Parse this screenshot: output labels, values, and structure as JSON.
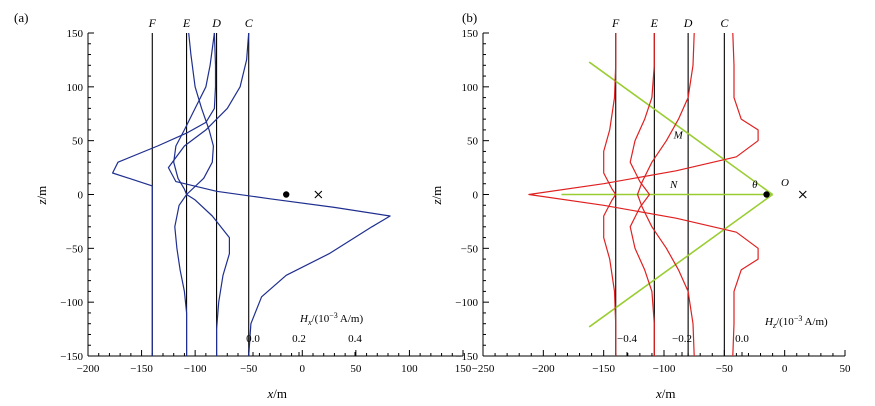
{
  "chart_data": [
    {
      "type": "line",
      "panel_label": "(a)",
      "xlabel_var": "x",
      "xlabel_unit": "/m",
      "ylabel_var": "z",
      "ylabel_unit": "/m",
      "xlim": [
        -200,
        150
      ],
      "ylim": [
        -150,
        150
      ],
      "xticks": [
        -200,
        -150,
        -100,
        -50,
        0,
        50,
        100,
        150
      ],
      "yticks": [
        -150,
        -100,
        -50,
        0,
        50,
        100,
        150
      ],
      "vertical_lines": [
        {
          "label": "F",
          "x": -140
        },
        {
          "label": "E",
          "x": -108
        },
        {
          "label": "D",
          "x": -80
        },
        {
          "label": "C",
          "x": -50
        }
      ],
      "curve_color": "#1f2f8f",
      "curves": [
        {
          "baseline": "F",
          "points": [
            [
              -140,
              -150
            ],
            [
              -140,
              -130
            ],
            [
              -140,
              -100
            ],
            [
              -140,
              -60
            ],
            [
              -140,
              -40
            ],
            [
              -140,
              -20
            ],
            [
              -140,
              0
            ],
            [
              -140,
              8
            ],
            [
              -177,
              20
            ],
            [
              -172,
              30
            ],
            [
              -135,
              45
            ],
            [
              -108,
              57
            ],
            [
              -90,
              67
            ],
            [
              -82,
              80
            ],
            [
              -81,
              100
            ],
            [
              -81,
              120
            ],
            [
              -82,
              150
            ]
          ]
        },
        {
          "baseline": "E",
          "points": [
            [
              -108,
              -150
            ],
            [
              -108,
              -110
            ],
            [
              -110,
              -90
            ],
            [
              -114,
              -70
            ],
            [
              -117,
              -50
            ],
            [
              -119,
              -30
            ],
            [
              -115,
              -10
            ],
            [
              -108,
              0
            ],
            [
              -92,
              15
            ],
            [
              -84,
              30
            ],
            [
              -83,
              45
            ],
            [
              -87,
              60
            ],
            [
              -94,
              80
            ],
            [
              -100,
              100
            ],
            [
              -104,
              130
            ],
            [
              -106,
              150
            ]
          ]
        },
        {
          "baseline": "D",
          "points": [
            [
              -80,
              -150
            ],
            [
              -80,
              -125
            ],
            [
              -78,
              -100
            ],
            [
              -74,
              -75
            ],
            [
              -68,
              -55
            ],
            [
              -68,
              -40
            ],
            [
              -84,
              -20
            ],
            [
              -100,
              -5
            ],
            [
              -108,
              0
            ],
            [
              -110,
              5
            ],
            [
              -116,
              15
            ],
            [
              -120,
              30
            ],
            [
              -118,
              45
            ],
            [
              -110,
              60
            ],
            [
              -100,
              80
            ],
            [
              -90,
              100
            ],
            [
              -86,
              120
            ],
            [
              -82,
              150
            ]
          ]
        },
        {
          "baseline": "C",
          "points": [
            [
              -50,
              -150
            ],
            [
              -48,
              -120
            ],
            [
              -38,
              -95
            ],
            [
              -15,
              -75
            ],
            [
              25,
              -55
            ],
            [
              65,
              -30
            ],
            [
              82,
              -20
            ],
            [
              30,
              -12
            ],
            [
              -30,
              -4
            ],
            [
              -80,
              3
            ],
            [
              -118,
              12
            ],
            [
              -125,
              25
            ],
            [
              -110,
              45
            ],
            [
              -90,
              60
            ],
            [
              -70,
              80
            ],
            [
              -58,
              100
            ],
            [
              -52,
              125
            ],
            [
              -50,
              150
            ]
          ]
        }
      ],
      "markers": [
        {
          "symbol": "dot",
          "x": -15,
          "z": 0
        },
        {
          "symbol": "cross",
          "x": 15,
          "z": 0
        }
      ],
      "scale_label_var": "H",
      "scale_label_sub": "x",
      "scale_label_unit": "/(10",
      "scale_label_exp": "−3",
      "scale_label_unit2": " A/m)",
      "scale_ticks": [
        "0.0",
        "0.2",
        "0.4"
      ]
    },
    {
      "type": "line",
      "panel_label": "(b)",
      "xlabel_var": "x",
      "xlabel_unit": "/m",
      "ylabel_var": "z",
      "ylabel_unit": "/m",
      "xlim": [
        -250,
        50
      ],
      "ylim": [
        -150,
        150
      ],
      "xticks": [
        -250,
        -200,
        -150,
        -100,
        -50,
        0,
        50
      ],
      "yticks": [
        -150,
        -100,
        -50,
        0,
        50,
        100,
        150
      ],
      "vertical_lines": [
        {
          "label": "F",
          "x": -140
        },
        {
          "label": "E",
          "x": -108
        },
        {
          "label": "D",
          "x": -80
        },
        {
          "label": "C",
          "x": -50
        }
      ],
      "curve_color": "#e02020",
      "curves": [
        {
          "baseline": "F",
          "points": [
            [
              -140,
              -150
            ],
            [
              -140,
              -120
            ],
            [
              -141,
              -90
            ],
            [
              -145,
              -60
            ],
            [
              -150,
              -40
            ],
            [
              -150,
              -20
            ],
            [
              -143,
              -5
            ],
            [
              -140,
              0
            ],
            [
              -143,
              5
            ],
            [
              -150,
              20
            ],
            [
              -150,
              40
            ],
            [
              -145,
              60
            ],
            [
              -141,
              90
            ],
            [
              -140,
              120
            ],
            [
              -140,
              150
            ]
          ]
        },
        {
          "baseline": "E",
          "points": [
            [
              -108,
              -150
            ],
            [
              -108,
              -120
            ],
            [
              -110,
              -90
            ],
            [
              -116,
              -70
            ],
            [
              -124,
              -50
            ],
            [
              -128,
              -30
            ],
            [
              -120,
              -12
            ],
            [
              -112,
              0
            ],
            [
              -120,
              12
            ],
            [
              -128,
              30
            ],
            [
              -124,
              50
            ],
            [
              -116,
              70
            ],
            [
              -110,
              90
            ],
            [
              -108,
              120
            ],
            [
              -108,
              150
            ]
          ]
        },
        {
          "baseline": "D",
          "points": [
            [
              -75,
              -150
            ],
            [
              -76,
              -120
            ],
            [
              -80,
              -90
            ],
            [
              -88,
              -70
            ],
            [
              -98,
              -50
            ],
            [
              -110,
              -30
            ],
            [
              -118,
              -12
            ],
            [
              -122,
              0
            ],
            [
              -118,
              12
            ],
            [
              -110,
              30
            ],
            [
              -98,
              50
            ],
            [
              -88,
              70
            ],
            [
              -80,
              90
            ],
            [
              -76,
              120
            ],
            [
              -75,
              150
            ]
          ]
        },
        {
          "baseline": "C",
          "points": [
            [
              -43,
              -150
            ],
            [
              -42,
              -120
            ],
            [
              -42,
              -90
            ],
            [
              -36,
              -70
            ],
            [
              -22,
              -60
            ],
            [
              -22,
              -50
            ],
            [
              -40,
              -35
            ],
            [
              -90,
              -22
            ],
            [
              -150,
              -10
            ],
            [
              -212,
              0
            ],
            [
              -150,
              10
            ],
            [
              -90,
              22
            ],
            [
              -40,
              35
            ],
            [
              -22,
              50
            ],
            [
              -22,
              60
            ],
            [
              -36,
              70
            ],
            [
              -42,
              90
            ],
            [
              -42,
              120
            ],
            [
              -43,
              150
            ]
          ]
        }
      ],
      "guide_color": "#9acd32",
      "guide_lines": [
        [
          [
            -162,
            123
          ],
          [
            -10,
            0
          ]
        ],
        [
          [
            -162,
            -123
          ],
          [
            -10,
            0
          ]
        ],
        [
          [
            -185,
            0
          ],
          [
            -10,
            0
          ]
        ]
      ],
      "annotations": [
        {
          "text": "M",
          "x": -92,
          "z": 52
        },
        {
          "text": "N",
          "x": -95,
          "z": 6
        },
        {
          "text": "θ",
          "x": -27,
          "z": 6
        },
        {
          "text": "O",
          "x": -3,
          "z": 8
        }
      ],
      "markers": [
        {
          "symbol": "dot",
          "x": -15,
          "z": 0
        },
        {
          "symbol": "cross",
          "x": 15,
          "z": 0
        }
      ],
      "scale_label_var": "H",
      "scale_label_sub": "z",
      "scale_label_unit": "/(10",
      "scale_label_exp": "−3",
      "scale_label_unit2": " A/m)",
      "scale_ticks": [
        "−0.4",
        "−0.2",
        "0.0"
      ]
    }
  ]
}
